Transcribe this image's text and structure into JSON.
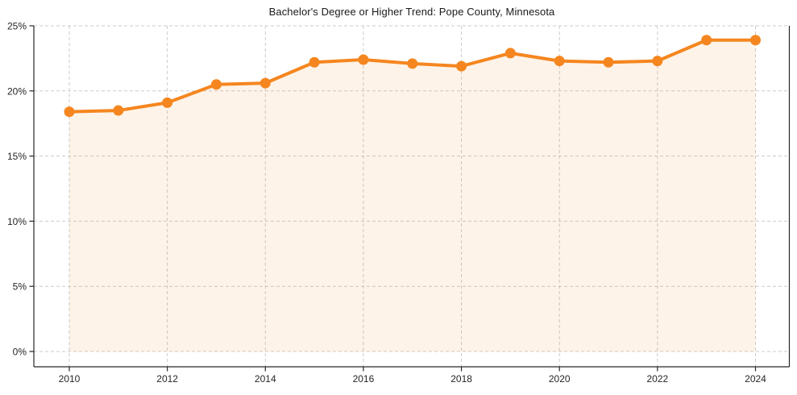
{
  "chart_data": {
    "type": "line",
    "title": "Bachelor's Degree or Higher Trend: Pope County, Minnesota",
    "series_name": "Bachelor's Degree or Higher (%)",
    "x": [
      2010,
      2011,
      2012,
      2013,
      2014,
      2015,
      2016,
      2017,
      2018,
      2019,
      2020,
      2021,
      2022,
      2023,
      2024
    ],
    "values": [
      18.4,
      18.5,
      19.1,
      20.5,
      20.6,
      22.2,
      22.4,
      22.1,
      21.9,
      22.9,
      22.3,
      22.2,
      22.3,
      23.9,
      23.9
    ],
    "xlabel": "",
    "ylabel": "",
    "ylim": [
      0,
      25
    ],
    "yticks": [
      0,
      5,
      10,
      15,
      20,
      25
    ],
    "ytick_labels": [
      "0%",
      "5%",
      "10%",
      "15%",
      "20%",
      "25%"
    ],
    "xticks": [
      2010,
      2012,
      2014,
      2016,
      2018,
      2020,
      2022,
      2024
    ],
    "grid": "dashed",
    "legend": "none",
    "area_fill": true,
    "marker": "circle",
    "colors": {
      "line": "#F5861F",
      "marker": "#F5861F",
      "fill": "#F5861F",
      "fill_opacity": 0.1,
      "grid": "#CBCBCB",
      "axis": "#262626",
      "text": "#262626",
      "background": "#FFFFFF"
    }
  }
}
